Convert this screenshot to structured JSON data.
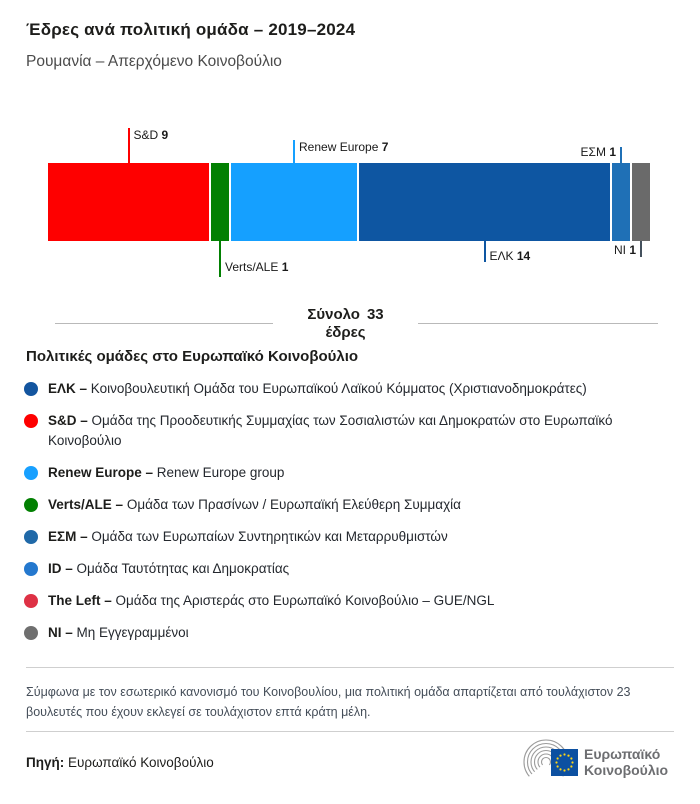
{
  "header": {
    "title": "Έδρες ανά πολιτική ομάδα – 2019–2024",
    "subtitle": "Ρουμανία – Απερχόμενο Κοινοβούλιο"
  },
  "chart_data": {
    "type": "bar",
    "title": "Έδρες ανά πολιτική ομάδα – 2019–2024",
    "region": "Ρουμανία – Απερχόμενο Κοινοβούλιο",
    "total": {
      "label": "Σύνολο",
      "value": 33,
      "unit": "έδρες"
    },
    "legend_position": "below",
    "segments": [
      {
        "id": "sd",
        "name": "S&D",
        "seats": 9,
        "color": "#fe0000",
        "label_position": "above",
        "label_align": "after-line"
      },
      {
        "id": "verts-ale",
        "name": "Verts/ALE",
        "seats": 1,
        "color": "#028002",
        "label_position": "below",
        "label_align": "after-line"
      },
      {
        "id": "renew",
        "name": "Renew Europe",
        "seats": 7,
        "color": "#15a0ff",
        "label_position": "above",
        "label_align": "after-line"
      },
      {
        "id": "epp",
        "name": "ΕΛΚ",
        "seats": 14,
        "color": "#0e56a2",
        "label_position": "below",
        "label_align": "after-line"
      },
      {
        "id": "ecr",
        "name": "ΕΣΜ",
        "seats": 1,
        "color": "#1f70b6",
        "label_position": "above",
        "label_align": "before-line"
      },
      {
        "id": "ni",
        "name": "NI",
        "seats": 1,
        "color": "#6a6a6a",
        "line_color": "#44515d",
        "label_position": "below",
        "label_align": "before-line"
      }
    ]
  },
  "legend": {
    "heading": "Πολιτικές ομάδες στο Ευρωπαϊκό Κοινοβούλιο",
    "items": [
      {
        "id": "epp",
        "label": "ΕΛΚ –",
        "color": "#13559f",
        "description": "Κοινοβουλευτική Ομάδα του Ευρωπαϊκού Λαϊκού Κόμματος (Χριστιανοδημοκράτες)"
      },
      {
        "id": "sd",
        "label": "S&D –",
        "color": "#fe0000",
        "description": "Ομάδα της Προοδευτικής Συμμαχίας των Σοσιαλιστών και Δημοκρατών στο Ευρωπαϊκό Κοινοβούλιο"
      },
      {
        "id": "renew",
        "label": "Renew Europe –",
        "color": "#18a0ff",
        "description": "Renew Europe group"
      },
      {
        "id": "verts-ale",
        "label": "Verts/ALE –",
        "color": "#028002",
        "description": "Ομάδα των Πρασίνων / Ευρωπαϊκή Ελεύθερη Συμμαχία"
      },
      {
        "id": "ecr",
        "label": "ΕΣΜ –",
        "color": "#2069a8",
        "description": "Ομάδα των Ευρωπαίων Συντηρητικών και Μεταρρυθμιστών"
      },
      {
        "id": "id",
        "label": "ID –",
        "color": "#2478ce",
        "description": "Ομάδα Ταυτότητας και Δημοκρατίας"
      },
      {
        "id": "left",
        "label": "The Left –",
        "color": "#de3145",
        "description": "Ομάδα της Αριστεράς στο Ευρωπαϊκό Κοινοβούλιο – GUE/NGL"
      },
      {
        "id": "ni",
        "label": "NI –",
        "color": "#6f6f6f",
        "description": "Μη Εγγεγραμμένοι"
      }
    ]
  },
  "footnote": "Σύμφωνα με τον εσωτερικό κανονισμό του Κοινοβουλίου, μια πολιτική ομάδα απαρτίζεται από τουλάχιστον 23 βουλευτές που έχουν εκλεγεί σε τουλάχιστον επτά κράτη μέλη.",
  "source": {
    "label": "Πηγή:",
    "value": "Ευρωπαϊκό Κοινοβούλιο"
  },
  "logo": {
    "line1": "Ευρωπαϊκό",
    "line2": "Κοινοβούλιο"
  }
}
